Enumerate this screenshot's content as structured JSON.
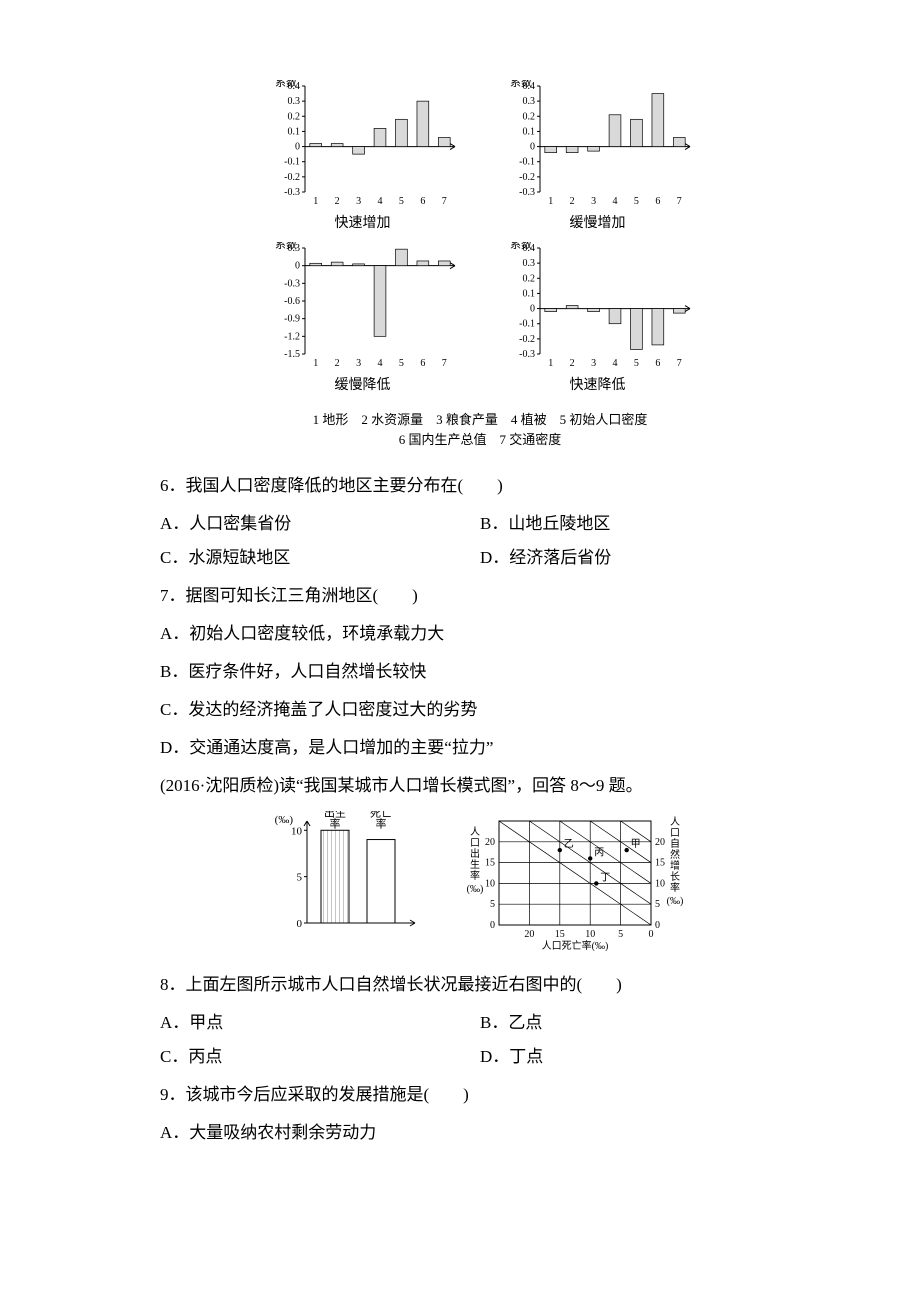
{
  "charts": {
    "axis_label": "系数",
    "x_ticks": [
      "1",
      "2",
      "3",
      "4",
      "5",
      "6",
      "7"
    ],
    "bar_fill": "#d9d9d9",
    "bar_stroke": "#000000",
    "axis_color": "#000000",
    "tick_fontsize": 10,
    "panels": [
      {
        "caption": "快速增加",
        "y_ticks": [
          0.4,
          0.3,
          0.2,
          0.1,
          0,
          -0.1,
          -0.2,
          -0.3
        ],
        "ymin": -0.3,
        "ymax": 0.4,
        "values": [
          0.02,
          0.02,
          -0.05,
          0.12,
          0.18,
          0.3,
          0.06
        ]
      },
      {
        "caption": "缓慢增加",
        "y_ticks": [
          0.4,
          0.3,
          0.2,
          0.1,
          0,
          -0.1,
          -0.2,
          -0.3
        ],
        "ymin": -0.3,
        "ymax": 0.4,
        "values": [
          -0.04,
          -0.04,
          -0.03,
          0.21,
          0.18,
          0.35,
          0.06
        ]
      },
      {
        "caption": "缓慢降低",
        "y_ticks": [
          0.3,
          0,
          -0.3,
          -0.6,
          -0.9,
          -1.2,
          -1.5
        ],
        "ymin": -1.5,
        "ymax": 0.3,
        "values": [
          0.04,
          0.06,
          0.03,
          -1.2,
          0.28,
          0.08,
          0.08
        ]
      },
      {
        "caption": "快速降低",
        "y_ticks": [
          0.4,
          0.3,
          0.2,
          0.1,
          0,
          -0.1,
          -0.2,
          -0.3
        ],
        "ymin": -0.3,
        "ymax": 0.4,
        "values": [
          -0.02,
          0.02,
          -0.02,
          -0.1,
          -0.27,
          -0.24,
          -0.03
        ]
      }
    ],
    "legend_items": "1 地形　2 水资源量　3 粮食产量　4 植被　5 初始人口密度",
    "legend_items2": "6 国内生产总值　7 交通密度"
  },
  "q6": {
    "text": "6．我国人口密度降低的地区主要分布在(　　)",
    "A": "A．人口密集省份",
    "B": "B．山地丘陵地区",
    "C": "C．水源短缺地区",
    "D": "D．经济落后省份"
  },
  "q7": {
    "text": "7．据图可知长江三角洲地区(　　)",
    "A": "A．初始人口密度较低，环境承载力大",
    "B": "B．医疗条件好，人口自然增长较快",
    "C": "C．发达的经济掩盖了人口密度过大的劣势",
    "D": "D．交通通达度高，是人口增加的主要“拉力”"
  },
  "intro8": "(2016·沈阳质检)读“我国某城市人口增长模式图”，回答 8～9 题。",
  "barPair": {
    "y_label": "(‰)",
    "y_ticks": [
      0,
      5,
      10
    ],
    "labels": [
      "出生率",
      "死亡率"
    ],
    "values": [
      10,
      9
    ],
    "fill1": "#c8c8c8",
    "fill2": "#ffffff",
    "stroke": "#000000"
  },
  "scatter": {
    "x_label": "人口死亡率(‰)",
    "y_left_label": "人口出生率(‰)",
    "y_right_label": "人口自然增长率(‰)",
    "ticks": [
      0,
      5,
      10,
      15,
      20
    ],
    "right_ticks": [
      0,
      5,
      10,
      15,
      20
    ],
    "points": {
      "甲": {
        "x": 4,
        "y": 18
      },
      "乙": {
        "x": 15,
        "y": 18
      },
      "丙": {
        "x": 10,
        "y": 16
      },
      "丁": {
        "x": 9,
        "y": 10
      }
    },
    "grid_color": "#000000",
    "point_fill": "#000000"
  },
  "q8": {
    "text": "8．上面左图所示城市人口自然增长状况最接近右图中的(　　)",
    "A": "A．甲点",
    "B": "B．乙点",
    "C": "C．丙点",
    "D": "D．丁点"
  },
  "q9": {
    "text": "9．该城市今后应采取的发展措施是(　　)",
    "A": "A．大量吸纳农村剩余劳动力"
  }
}
